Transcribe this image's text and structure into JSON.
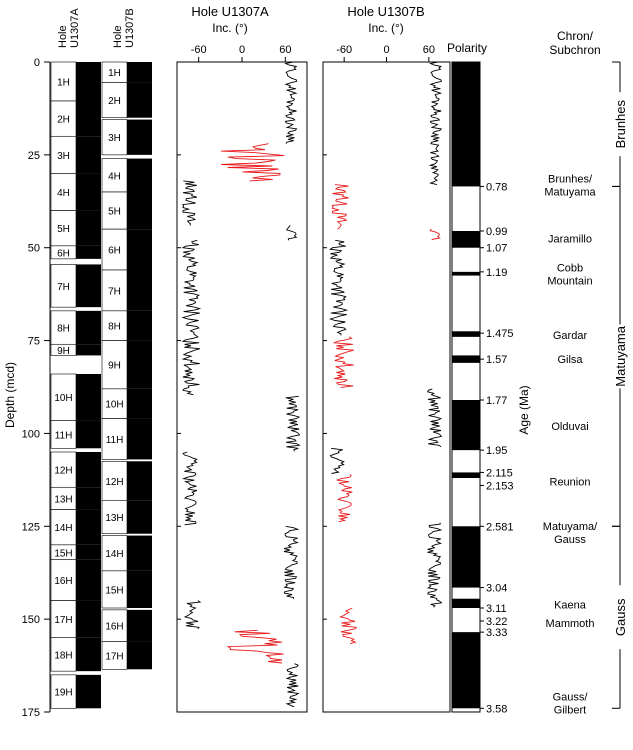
{
  "chart_data": {
    "type": "line",
    "y_axis": {
      "label": "Depth (mcd)",
      "ticks": [
        0,
        25,
        50,
        75,
        100,
        125,
        150,
        175
      ],
      "range": [
        0,
        175
      ]
    },
    "inc_axis": {
      "label": "Inc. (°)",
      "ticks": [
        "-60",
        "0",
        "60"
      ],
      "range": [
        -90,
        90
      ]
    },
    "core_columns": [
      {
        "label": "Hole U1307A",
        "cores": [
          {
            "name": "1H",
            "top": 0,
            "bottom": 10.5
          },
          {
            "name": "2H",
            "top": 10.5,
            "bottom": 20
          },
          {
            "name": "3H",
            "top": 20,
            "bottom": 30
          },
          {
            "name": "4H",
            "top": 30,
            "bottom": 40
          },
          {
            "name": "5H",
            "top": 40,
            "bottom": 49.5
          },
          {
            "name": "6H",
            "top": 49.5,
            "bottom": 53
          },
          {
            "name": "7H",
            "top": 54.5,
            "bottom": 66
          },
          {
            "name": "8H",
            "top": 67,
            "bottom": 76
          },
          {
            "name": "9H",
            "top": 76,
            "bottom": 79
          },
          {
            "name": "10H",
            "top": 84,
            "bottom": 96.5
          },
          {
            "name": "11H",
            "top": 96.5,
            "bottom": 104
          },
          {
            "name": "12H",
            "top": 105,
            "bottom": 114.5
          },
          {
            "name": "13H",
            "top": 114.5,
            "bottom": 120.5
          },
          {
            "name": "14H",
            "top": 120.5,
            "bottom": 130
          },
          {
            "name": "15H",
            "top": 130,
            "bottom": 134
          },
          {
            "name": "16H",
            "top": 134,
            "bottom": 145
          },
          {
            "name": "17H",
            "top": 145,
            "bottom": 155
          },
          {
            "name": "18H",
            "top": 155,
            "bottom": 164
          },
          {
            "name": "19H",
            "top": 165,
            "bottom": 174
          }
        ]
      },
      {
        "label": "Hole U1307B",
        "cores": [
          {
            "name": "1H",
            "top": 0,
            "bottom": 5.5
          },
          {
            "name": "2H",
            "top": 5.5,
            "bottom": 15
          },
          {
            "name": "3H",
            "top": 15.5,
            "bottom": 25
          },
          {
            "name": "4H",
            "top": 26,
            "bottom": 35
          },
          {
            "name": "5H",
            "top": 35,
            "bottom": 45
          },
          {
            "name": "6H",
            "top": 45,
            "bottom": 56
          },
          {
            "name": "7H",
            "top": 56,
            "bottom": 67
          },
          {
            "name": "8H",
            "top": 67,
            "bottom": 75
          },
          {
            "name": "9H",
            "top": 75,
            "bottom": 88
          },
          {
            "name": "10H",
            "top": 88,
            "bottom": 96
          },
          {
            "name": "11H",
            "top": 96,
            "bottom": 107
          },
          {
            "name": "12H",
            "top": 107.5,
            "bottom": 118
          },
          {
            "name": "13H",
            "top": 118,
            "bottom": 127
          },
          {
            "name": "14H",
            "top": 127.5,
            "bottom": 137
          },
          {
            "name": "15H",
            "top": 137,
            "bottom": 147
          },
          {
            "name": "16H",
            "top": 147.5,
            "bottom": 156
          },
          {
            "name": "17H",
            "top": 156,
            "bottom": 163.5
          }
        ]
      }
    ],
    "series": [
      {
        "name": "Hole U1307A",
        "color_black": "#000000",
        "color_red": "#e8191b",
        "segments": [
          {
            "from": 0,
            "to": 22,
            "base": 68,
            "amp": 8,
            "color": "black"
          },
          {
            "from": 22,
            "to": 32,
            "base": 15,
            "amp": 45,
            "color": "red"
          },
          {
            "from": 32,
            "to": 44,
            "base": -72,
            "amp": 10,
            "color": "black"
          },
          {
            "from": 44,
            "to": 48,
            "base": 68,
            "amp": 8,
            "color": "black"
          },
          {
            "from": 48,
            "to": 90,
            "base": -70,
            "amp": 12,
            "color": "black"
          },
          {
            "from": 90,
            "to": 105,
            "base": 70,
            "amp": 10,
            "color": "black"
          },
          {
            "from": 105,
            "to": 125,
            "base": -72,
            "amp": 10,
            "color": "black"
          },
          {
            "from": 125,
            "to": 145,
            "base": 68,
            "amp": 10,
            "color": "black"
          },
          {
            "from": 145,
            "to": 153,
            "base": -70,
            "amp": 12,
            "color": "black"
          },
          {
            "from": 153,
            "to": 162,
            "base": 20,
            "amp": 45,
            "color": "red"
          },
          {
            "from": 162,
            "to": 174,
            "base": 70,
            "amp": 8,
            "color": "black"
          }
        ]
      },
      {
        "name": "Hole U1307B",
        "color_black": "#000000",
        "color_red": "#e8191b",
        "segments": [
          {
            "from": 0,
            "to": 25,
            "base": 70,
            "amp": 8,
            "color": "black"
          },
          {
            "from": 25,
            "to": 33,
            "base": 68,
            "amp": 6,
            "color": "black"
          },
          {
            "from": 33,
            "to": 45,
            "base": -65,
            "amp": 12,
            "color": "red"
          },
          {
            "from": 45,
            "to": 48,
            "base": 68,
            "amp": 8,
            "color": "red"
          },
          {
            "from": 48,
            "to": 74,
            "base": -68,
            "amp": 12,
            "color": "black"
          },
          {
            "from": 74,
            "to": 88,
            "base": -60,
            "amp": 14,
            "color": "red"
          },
          {
            "from": 88,
            "to": 104,
            "base": 68,
            "amp": 10,
            "color": "black"
          },
          {
            "from": 104,
            "to": 111,
            "base": -70,
            "amp": 10,
            "color": "black"
          },
          {
            "from": 111,
            "to": 124,
            "base": -60,
            "amp": 12,
            "color": "red"
          },
          {
            "from": 124,
            "to": 147,
            "base": 68,
            "amp": 10,
            "color": "black"
          },
          {
            "from": 147,
            "to": 157,
            "base": -55,
            "amp": 14,
            "color": "red"
          }
        ]
      }
    ],
    "polarity": {
      "label": "Polarity",
      "normal_intervals": [
        [
          0,
          33.5
        ],
        [
          45.5,
          50
        ],
        [
          56.5,
          57.5
        ],
        [
          72.5,
          74
        ],
        [
          79,
          81
        ],
        [
          91,
          104.5
        ],
        [
          110.5,
          112
        ],
        [
          125,
          141.5
        ],
        [
          144.5,
          147
        ],
        [
          153.5,
          174
        ]
      ],
      "range": [
        0,
        174
      ]
    },
    "age_axis": {
      "label": "Age (Ma)",
      "ticks": [
        {
          "depth": 33.5,
          "label": "0.78"
        },
        {
          "depth": 45.5,
          "label": "0.99"
        },
        {
          "depth": 50,
          "label": "1.07"
        },
        {
          "depth": 56.5,
          "label": "1.19"
        },
        {
          "depth": 73,
          "label": "1.475"
        },
        {
          "depth": 80,
          "label": "1.57"
        },
        {
          "depth": 91,
          "label": "1.77"
        },
        {
          "depth": 104.5,
          "label": "1.95"
        },
        {
          "depth": 110.5,
          "label": "2.115"
        },
        {
          "depth": 114,
          "label": "2.153"
        },
        {
          "depth": 125,
          "label": "2.581"
        },
        {
          "depth": 141.5,
          "label": "3.04"
        },
        {
          "depth": 147,
          "label": "3.11"
        },
        {
          "depth": 150.5,
          "label": "3.22"
        },
        {
          "depth": 153.5,
          "label": "3.33"
        },
        {
          "depth": 174,
          "label": "3.58"
        }
      ]
    },
    "chron_header": {
      "line1": "Chron/",
      "line2": "Subchron"
    },
    "subchrons": [
      {
        "depth": 33,
        "line1": "Brunhes/",
        "line2": "Matuyama"
      },
      {
        "depth": 47.5,
        "line1": "Jaramillo",
        "line2": ""
      },
      {
        "depth": 57,
        "line1": "Cobb",
        "line2": "Mountain"
      },
      {
        "depth": 73.5,
        "line1": "Gardar",
        "line2": ""
      },
      {
        "depth": 80,
        "line1": "Gilsa",
        "line2": ""
      },
      {
        "depth": 98,
        "line1": "Olduvai",
        "line2": ""
      },
      {
        "depth": 113,
        "line1": "Reunion",
        "line2": ""
      },
      {
        "depth": 126.5,
        "line1": "Matuyama/",
        "line2": "Gauss"
      },
      {
        "depth": 146,
        "line1": "Kaena",
        "line2": ""
      },
      {
        "depth": 151,
        "line1": "Mammoth",
        "line2": ""
      },
      {
        "depth": 172.5,
        "line1": "Gauss/",
        "line2": "Gilbert"
      }
    ],
    "chrons": [
      {
        "label": "Brunhes",
        "from": 0,
        "to": 33.5
      },
      {
        "label": "Matuyama",
        "from": 33.5,
        "to": 125
      },
      {
        "label": "Gauss",
        "from": 125,
        "to": 174
      }
    ]
  }
}
